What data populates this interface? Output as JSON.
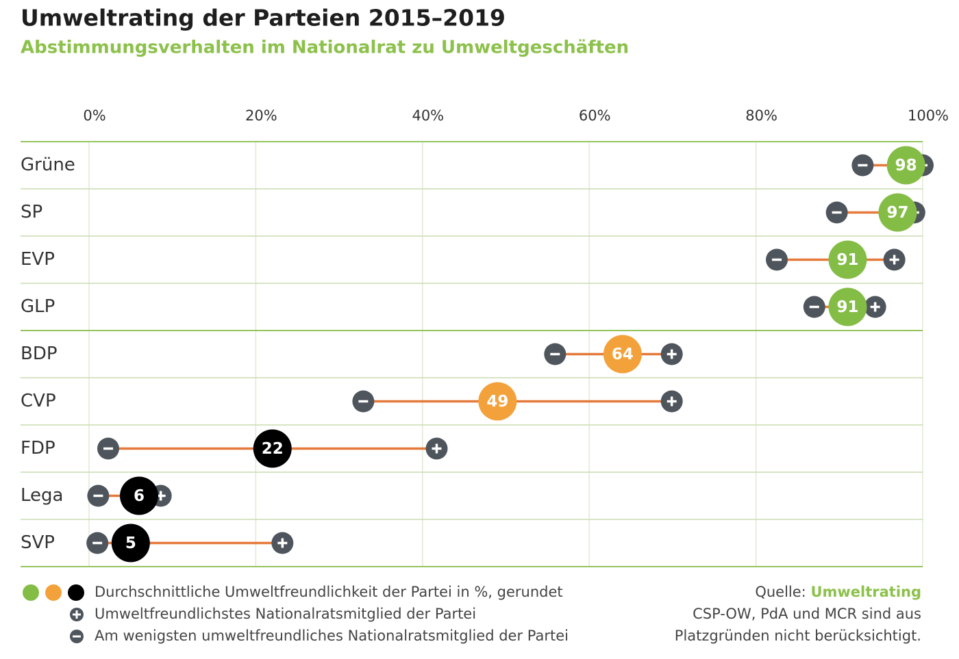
{
  "chart_data": {
    "type": "dumbbell",
    "title": "Umweltrating der Parteien 2015–2019",
    "subtitle": "Abstimmungsverhalten im Nationalrat zu Umweltgeschäften",
    "categories": [
      "Grüne",
      "SP",
      "EVP",
      "GLP",
      "BDP",
      "CVP",
      "FDP",
      "Lega",
      "SVP"
    ],
    "series": [
      {
        "name": "Durchschnittliche Umweltfreundlichkeit der Partei in %, gerundet",
        "values": [
          98,
          97,
          91,
          91,
          64,
          49,
          22,
          6,
          5
        ],
        "colors": [
          "#84bd45",
          "#84bd45",
          "#84bd45",
          "#84bd45",
          "#f3a13a",
          "#f3a13a",
          "#000000",
          "#000000",
          "#000000"
        ]
      },
      {
        "name": "Umweltfreundlichstes Nationalratsmitglied der Partei",
        "values": [
          100,
          99,
          96.6,
          94.3,
          69.9,
          69.9,
          41.7,
          8.6,
          23.2
        ],
        "color": "#4f555c"
      },
      {
        "name": "Am wenigsten umweltfreundliches Nationalratsmitglied der Partei",
        "values": [
          92.8,
          89.7,
          82.5,
          87,
          55.9,
          32.9,
          2.3,
          1.1,
          1
        ],
        "color": "#4f555c"
      }
    ],
    "line_color": "#e5793a",
    "xlim": [
      0,
      100
    ],
    "xticks": [
      {
        "value": 0,
        "label": "0%"
      },
      {
        "value": 20,
        "label": "20%"
      },
      {
        "value": 40,
        "label": "40%"
      },
      {
        "value": 60,
        "label": "60%"
      },
      {
        "value": 80,
        "label": "80%"
      },
      {
        "value": 100,
        "label": "100%"
      }
    ],
    "grid": true,
    "source": {
      "prefix": "Quelle:",
      "name": "Umweltrating"
    },
    "note": [
      "CSP-OW, PdA und MCR sind aus",
      "Platzgründen nicht berücksichtigt."
    ]
  }
}
